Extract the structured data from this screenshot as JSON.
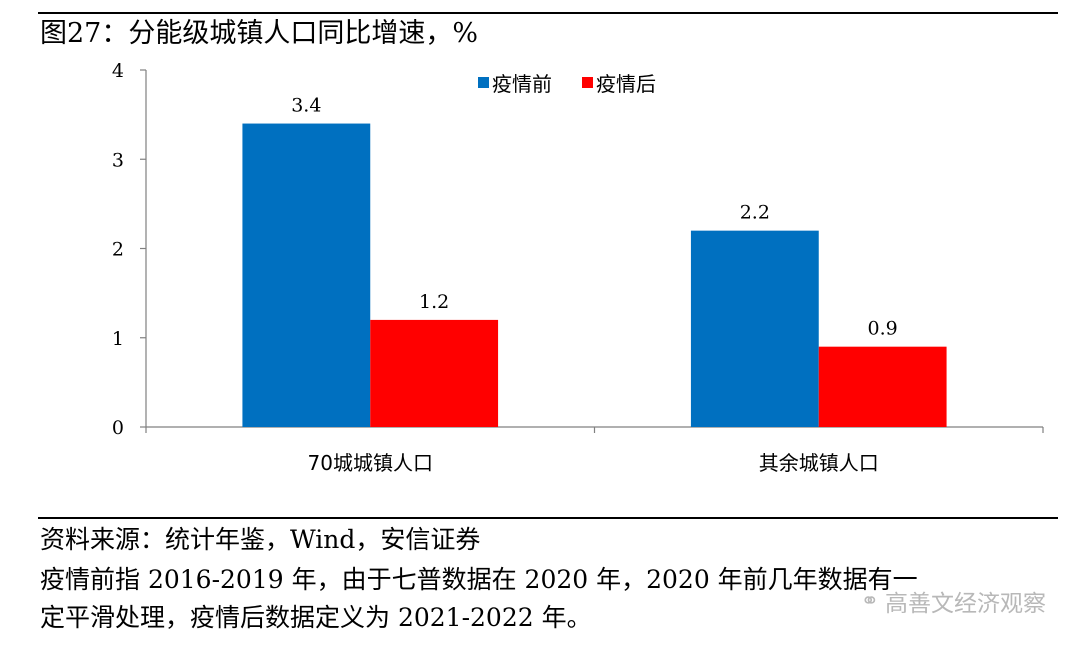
{
  "header": {
    "title": "图27：分能级城镇人口同比增速，%"
  },
  "chart_data": {
    "type": "bar",
    "categories": [
      "70城城镇人口",
      "其余城镇人口"
    ],
    "series": [
      {
        "name": "疫情前",
        "values": [
          3.4,
          2.2
        ],
        "color": "#0070C0"
      },
      {
        "name": "疫情后",
        "values": [
          1.2,
          0.9
        ],
        "color": "#FF0000"
      }
    ],
    "data_labels": [
      [
        "3.4",
        "2.2"
      ],
      [
        "1.2",
        "0.9"
      ]
    ],
    "ylim": [
      0,
      4
    ],
    "yticks": [
      0,
      1,
      2,
      3,
      4
    ],
    "legend_position": "top-right",
    "grid": false
  },
  "footer": {
    "source": "资料来源：统计年鉴，Wind，安信证券",
    "note_line1": "疫情前指 2016-2019 年，由于七普数据在 2020 年，2020 年前几年数据有一",
    "note_line2": "定平滑处理，疫情后数据定义为 2021-2022 年。"
  },
  "watermark": {
    "text": "高善文经济观察",
    "icon": "wechat-icon"
  }
}
